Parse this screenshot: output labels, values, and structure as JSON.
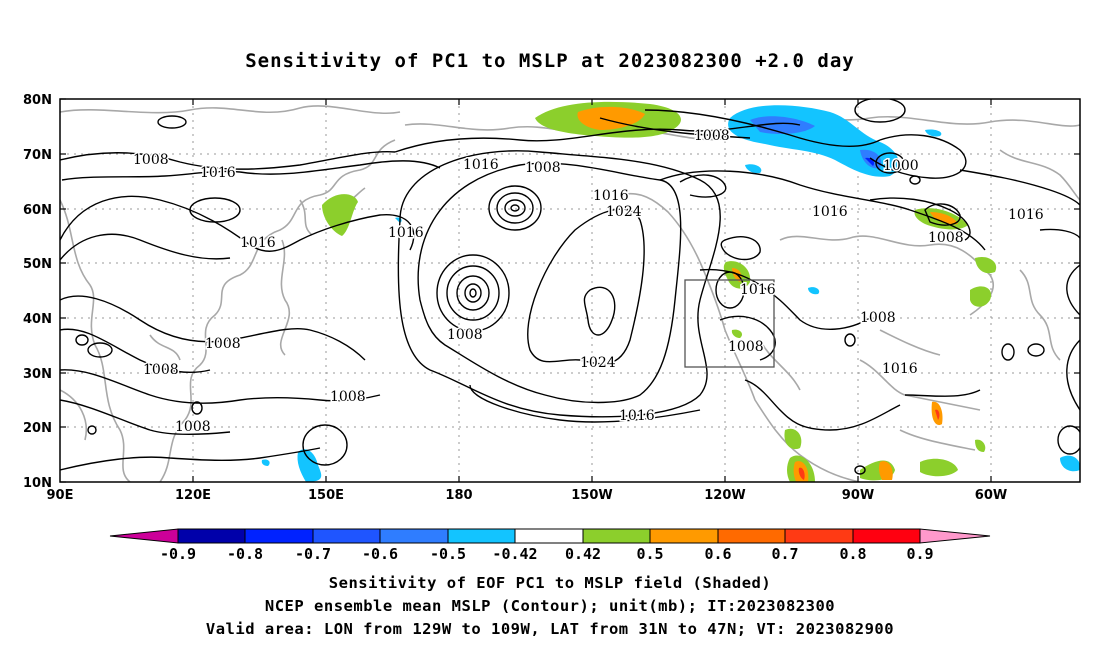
{
  "title": "Sensitivity of PC1 to MSLP at 2023082300 +2.0 day",
  "y_axis": [
    "80N",
    "70N",
    "60N",
    "50N",
    "40N",
    "30N",
    "20N",
    "10N"
  ],
  "x_axis": [
    "90E",
    "120E",
    "150E",
    "180",
    "150W",
    "120W",
    "90W",
    "60W"
  ],
  "contour_labels": [
    "1008",
    "1016",
    "1016",
    "1008",
    "1016",
    "1008",
    "1016",
    "1024",
    "1008",
    "1000",
    "1016",
    "1016",
    "1016",
    "1008",
    "1008",
    "1024",
    "1016",
    "1008",
    "1008",
    "1008",
    "1008",
    "1016",
    "1008",
    "1008",
    "1008",
    "1016",
    "1008"
  ],
  "colorbar": {
    "labels": [
      "-0.9",
      "-0.8",
      "-0.7",
      "-0.6",
      "-0.5",
      "-0.42",
      "0.42",
      "0.5",
      "0.6",
      "0.7",
      "0.8",
      "0.9"
    ],
    "colors": [
      "#0000aa",
      "#0022ff",
      "#1f55ff",
      "#2f7dff",
      "#13c4ff",
      "#ffffff",
      "#8ccf2c",
      "#ff9a00",
      "#ff6a00",
      "#ff3a14",
      "#ff0010"
    ],
    "left_tail_color": "#cc0099",
    "right_tail_color": "#ff99cc"
  },
  "captions": [
    "Sensitivity of EOF PC1 to MSLP field (Shaded)",
    "NCEP ensemble mean MSLP (Contour); unit(mb); IT:2023082300",
    "Valid area: LON from 129W to 109W, LAT from 31N to 47N; VT: 2023082900"
  ]
}
